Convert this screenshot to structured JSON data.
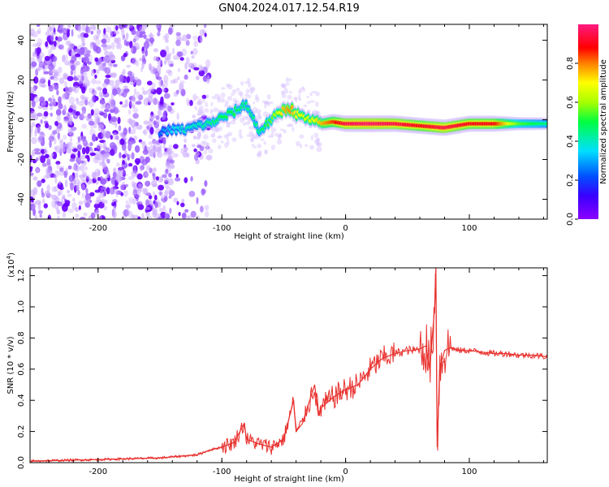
{
  "title": "GN04.2024.017.12.54.R19",
  "colors": {
    "snr_line": "#e8312e",
    "spec_purple": "#7b2cff",
    "background": "#ffffff"
  },
  "chart_data": [
    {
      "type": "heatmap",
      "name": "spectrogram",
      "xlabel": "Height of straight line (km)",
      "ylabel": "Frequency (Hz)",
      "xlim": [
        -255,
        163
      ],
      "ylim": [
        -50,
        48
      ],
      "xticks": [
        -200,
        -100,
        0,
        100
      ],
      "yticks": [
        -40,
        -20,
        0,
        20,
        40
      ],
      "colorbar": {
        "label": "Normalized spectral amplitude",
        "range": [
          0.0,
          1.0
        ],
        "ticks": [
          "0.0",
          "0.2",
          "0.4",
          "0.6",
          "0.8"
        ],
        "colormap": "rainbow (violet → blue → cyan → green → yellow → red → magenta)"
      },
      "ridge": {
        "description": "signal trace frequency vs height",
        "x": [
          -150,
          -140,
          -130,
          -120,
          -110,
          -100,
          -90,
          -80,
          -70,
          -60,
          -50,
          -45,
          -40,
          -30,
          -20,
          -10,
          0,
          20,
          40,
          60,
          80,
          100,
          120,
          140,
          163
        ],
        "y": [
          -6,
          -5,
          -5,
          -3,
          -2,
          1,
          4,
          8,
          -6,
          0,
          5,
          6,
          3,
          0,
          -2,
          -1,
          -2,
          -2,
          -2,
          -3,
          -4,
          -2,
          -2,
          -2,
          -2
        ],
        "amplitude": [
          0.25,
          0.35,
          0.4,
          0.4,
          0.45,
          0.5,
          0.5,
          0.45,
          0.45,
          0.55,
          0.75,
          0.8,
          0.7,
          0.65,
          0.75,
          0.85,
          0.95,
          0.98,
          0.95,
          0.9,
          0.95,
          0.9,
          0.9,
          0.55,
          0.45
        ]
      },
      "noise_region_x": [
        -255,
        -120
      ]
    },
    {
      "type": "line",
      "name": "snr",
      "xlabel": "Height of straight line (km)",
      "ylabel": "SNR (10 * v/v)",
      "y_multiplier": "(x10",
      "y_exponent": "4",
      "xlim": [
        -255,
        163
      ],
      "ylim": [
        0.0,
        1.25
      ],
      "xticks": [
        -200,
        -100,
        0,
        100
      ],
      "yticks": [
        "0.0",
        "0.2",
        "0.4",
        "0.6",
        "0.8",
        "1.0",
        "1.2"
      ],
      "series": [
        {
          "x": [
            -255,
            -200,
            -150,
            -120,
            -110,
            -100,
            -90,
            -82,
            -80,
            -70,
            -60,
            -50,
            -42,
            -40,
            -35,
            -25,
            -22,
            -20,
            -10,
            0,
            10,
            20,
            30,
            40,
            50,
            55,
            60,
            65,
            68,
            70,
            72,
            73,
            74,
            76,
            80,
            85,
            90,
            100,
            110,
            120,
            130,
            140,
            150,
            163
          ],
          "y": [
            0.01,
            0.02,
            0.03,
            0.05,
            0.08,
            0.1,
            0.13,
            0.25,
            0.15,
            0.12,
            0.1,
            0.15,
            0.4,
            0.2,
            0.25,
            0.5,
            0.3,
            0.35,
            0.42,
            0.47,
            0.5,
            0.6,
            0.67,
            0.7,
            0.72,
            0.72,
            0.73,
            0.75,
            0.6,
            0.8,
            1.0,
            1.25,
            0.1,
            0.6,
            0.72,
            0.74,
            0.72,
            0.72,
            0.71,
            0.7,
            0.7,
            0.69,
            0.69,
            0.68
          ]
        }
      ]
    }
  ]
}
